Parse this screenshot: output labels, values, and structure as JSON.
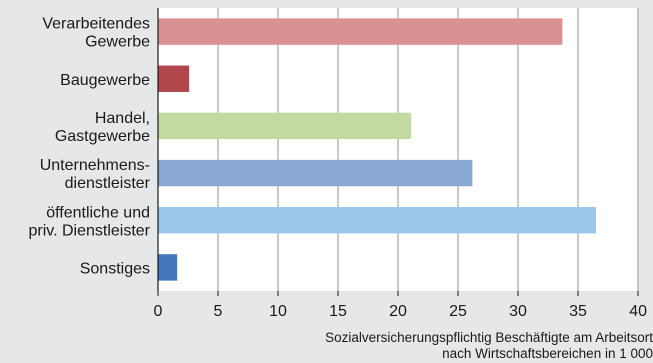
{
  "chart_data": {
    "type": "bar",
    "orientation": "horizontal",
    "categories": [
      [
        "Verarbeitendes",
        "Gewerbe"
      ],
      [
        "Baugewerbe"
      ],
      [
        "Handel,",
        "Gastgewerbe"
      ],
      [
        "Unternehmens-",
        "dienstleister"
      ],
      [
        "öffentliche und",
        "priv. Dienstleister"
      ],
      [
        "Sonstiges"
      ]
    ],
    "values": [
      33.7,
      2.6,
      21.1,
      26.2,
      36.5,
      1.6
    ],
    "bar_colors": [
      "#d99194",
      "#b0474d",
      "#c3dba0",
      "#89a9d3",
      "#9dc7ea",
      "#4277bd"
    ],
    "xlim": [
      0,
      40
    ],
    "xticks": [
      0,
      5,
      10,
      15,
      20,
      25,
      30,
      35,
      40
    ],
    "xlabel": [
      "Sozialversicherungspflichtig Beschäftigte am Arbeitsort",
      "nach Wirtschaftsbereichen in 1 000"
    ],
    "grid": "vertical",
    "plot_background": "#ffffff",
    "page_background": "#e6e7e8",
    "grid_color": "#8a8a8a"
  }
}
